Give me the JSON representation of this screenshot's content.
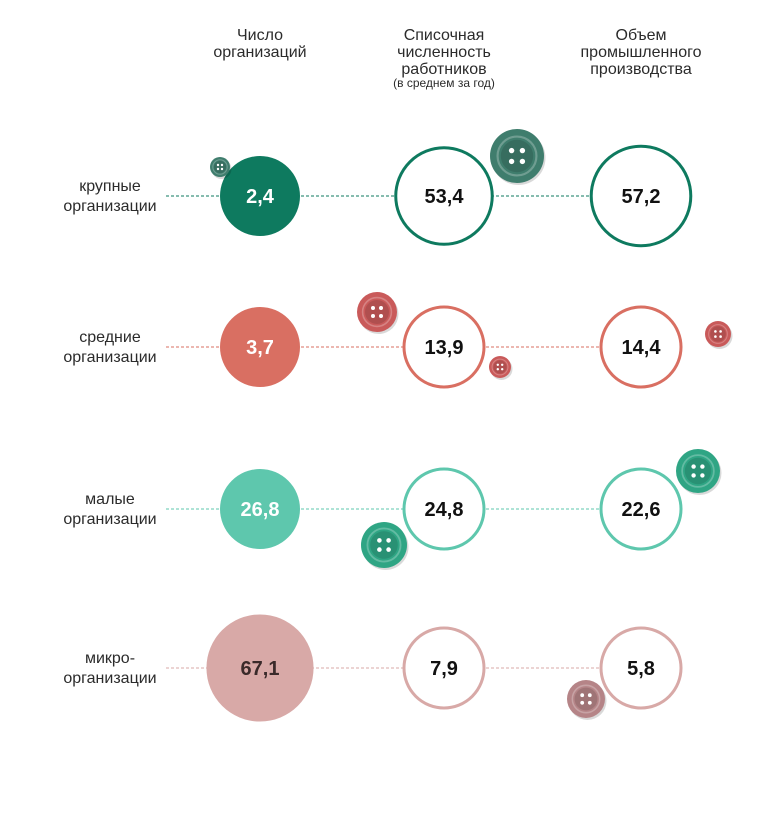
{
  "chart_data": {
    "type": "bubble",
    "columns": [
      {
        "lines": [
          "Число",
          "организаций"
        ],
        "note": ""
      },
      {
        "lines": [
          "Списочная",
          "численность",
          "работников"
        ],
        "note": "(в среднем за год)"
      },
      {
        "lines": [
          "Объем",
          "промышленного",
          "производства"
        ],
        "note": ""
      }
    ],
    "rows": [
      {
        "lines": [
          "крупные",
          "организации"
        ],
        "values": [
          "2,4",
          "53,4",
          "57,2"
        ],
        "color": "#0e7a5f",
        "button": "#3f7d6d"
      },
      {
        "lines": [
          "средние",
          "организации"
        ],
        "values": [
          "3,7",
          "13,9",
          "14,4"
        ],
        "color": "#d96f62",
        "button": "#c95a5a"
      },
      {
        "lines": [
          "малые",
          "организации"
        ],
        "values": [
          "26,8",
          "24,8",
          "22,6"
        ],
        "color": "#5ec7ad",
        "button": "#2fa584"
      },
      {
        "lines": [
          "микро-",
          "организации"
        ],
        "values": [
          "67,1",
          "7,9",
          "5,8"
        ],
        "color": "#d8a9a7",
        "button": "#b58487"
      }
    ]
  }
}
